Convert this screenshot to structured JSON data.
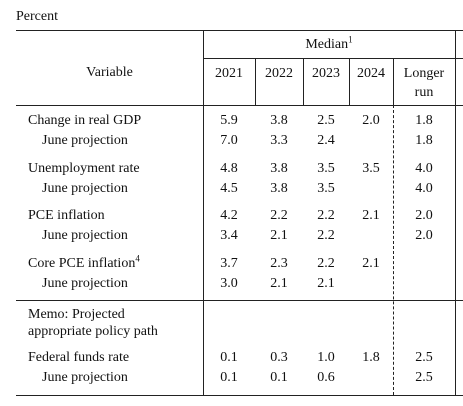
{
  "unit": "Percent",
  "header": {
    "variable": "Variable",
    "group": "Median",
    "group_note": "1",
    "columns": [
      "2021",
      "2022",
      "2023",
      "2024",
      "Longer run"
    ]
  },
  "rows": [
    {
      "label": "Change in real GDP",
      "values": [
        "5.9",
        "3.8",
        "2.5",
        "2.0",
        "1.8"
      ]
    },
    {
      "label": "June projection",
      "values": [
        "7.0",
        "3.3",
        "2.4",
        null,
        "1.8"
      ]
    },
    {
      "label": "Unemployment rate",
      "values": [
        "4.8",
        "3.8",
        "3.5",
        "3.5",
        "4.0"
      ]
    },
    {
      "label": "June projection",
      "values": [
        "4.5",
        "3.8",
        "3.5",
        null,
        "4.0"
      ]
    },
    {
      "label": "PCE inflation",
      "values": [
        "4.2",
        "2.2",
        "2.2",
        "2.1",
        "2.0"
      ]
    },
    {
      "label": "June projection",
      "values": [
        "3.4",
        "2.1",
        "2.2",
        null,
        "2.0"
      ]
    },
    {
      "label": "Core PCE inflation",
      "note": "4",
      "values": [
        "3.7",
        "2.3",
        "2.2",
        "2.1",
        null
      ]
    },
    {
      "label": "June projection",
      "values": [
        "3.0",
        "2.1",
        "2.1",
        null,
        null
      ]
    }
  ],
  "memo": {
    "label": [
      "Memo: Projected",
      "appropriate policy path"
    ]
  },
  "memo_rows": [
    {
      "label": "Federal funds rate",
      "values": [
        "0.1",
        "0.3",
        "1.0",
        "1.8",
        "2.5"
      ]
    },
    {
      "label": "June projection",
      "values": [
        "0.1",
        "0.1",
        "0.6",
        null,
        "2.5"
      ]
    }
  ]
}
